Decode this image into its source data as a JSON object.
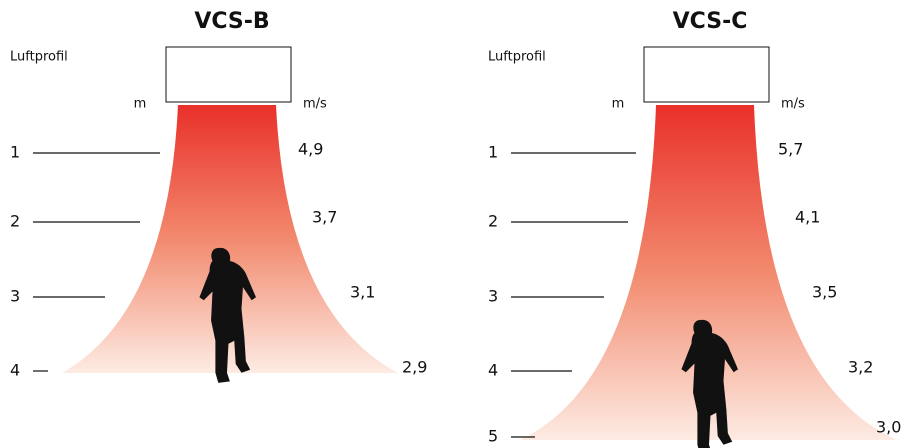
{
  "panels": [
    {
      "title": "VCS-B",
      "profile_label": "Luftprofil",
      "distance_unit": "m",
      "speed_unit": "m/s",
      "distances": [
        1,
        2,
        3,
        4
      ],
      "speeds": [
        "4,9",
        "3,7",
        "3,1",
        "2,9"
      ]
    },
    {
      "title": "VCS-C",
      "profile_label": "Luftprofil",
      "distance_unit": "m",
      "speed_unit": "m/s",
      "distances": [
        1,
        2,
        3,
        4,
        5
      ],
      "speeds": [
        "5,7",
        "4,1",
        "3,5",
        "3,2",
        "3,0"
      ]
    }
  ]
}
